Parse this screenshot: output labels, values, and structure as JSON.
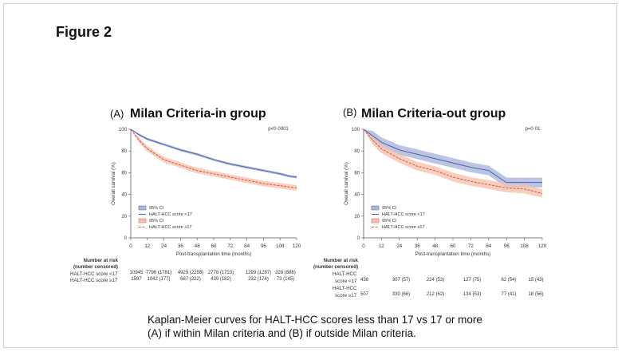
{
  "figure_title": "Figure 2",
  "caption": {
    "line1": "Kaplan-Meier curves for HALT-HCC scores less than 17 vs 17 or more",
    "line2": "(A) if within Milan criteria and (B) if outside Milan criteria."
  },
  "colors": {
    "blue_line": "#4a63a6",
    "blue_band": "#aab7dc",
    "red_line": "#d9534f",
    "red_band": "#f6c2ad"
  },
  "chart_data": [
    {
      "type": "line",
      "panel_tag": "(A)",
      "title": "Milan Criteria-in group",
      "xlabel": "Post-transplantation time (months)",
      "ylabel": "Overall survival (%)",
      "xlim": [
        0,
        120
      ],
      "ylim": [
        0,
        100
      ],
      "xticks": [
        "0",
        "12",
        "24",
        "36",
        "48",
        "60",
        "72",
        "84",
        "96",
        "108",
        "120"
      ],
      "yticks": [
        "0",
        "20",
        "40",
        "60",
        "80",
        "100"
      ],
      "p_value": "p<0·0001",
      "legend": [
        "95% CI",
        "HALT-HCC score <17",
        "95% CI",
        "HALT-HCC score ≥17"
      ],
      "legend_position": "bottom-left",
      "series": [
        {
          "name": "HALT-HCC score <17",
          "color": "blue",
          "x": [
            0,
            6,
            12,
            24,
            36,
            48,
            60,
            72,
            84,
            96,
            108,
            114,
            120
          ],
          "y": [
            100,
            95,
            91,
            86,
            81,
            77,
            72,
            68,
            65,
            62,
            59,
            57,
            56
          ],
          "ci_halfwidth": 1.2
        },
        {
          "name": "HALT-HCC score ≥17",
          "color": "red",
          "x": [
            0,
            6,
            12,
            24,
            36,
            48,
            60,
            72,
            84,
            96,
            108,
            114,
            120
          ],
          "y": [
            100,
            90,
            82,
            72,
            67,
            62,
            59,
            56,
            53,
            50,
            48,
            47,
            46
          ],
          "ci_halfwidth": 2.5
        }
      ],
      "risk_table": {
        "header": [
          "Number at risk",
          "(number censored)"
        ],
        "rows": [
          {
            "label": "HALT-HCC score <17",
            "values": [
              "10945",
              "7796 (1781)",
              "4929 (2258)",
              "2778 (1723)",
              "1299 (1287)",
              "328 (886)"
            ]
          },
          {
            "label": "HALT-HCC score ≥17",
            "values": [
              "1597",
              "1042 (177)",
              "687 (222)",
              "439 (182)",
              "232 (174)",
              "73 (145)"
            ]
          }
        ]
      }
    },
    {
      "type": "line",
      "panel_tag": "(B)",
      "title": "Milan Criteria-out group",
      "xlabel": "Post-transplantation time (months)",
      "ylabel": "Overall survival (%)",
      "xlim": [
        0,
        120
      ],
      "ylim": [
        0,
        100
      ],
      "xticks": [
        "0",
        "12",
        "24",
        "36",
        "48",
        "60",
        "72",
        "84",
        "96",
        "108",
        "120"
      ],
      "yticks": [
        "0",
        "20",
        "40",
        "60",
        "80",
        "100"
      ],
      "p_value": "p=0·01",
      "legend": [
        "95% CI",
        "HALT-HCC score <17",
        "95% CI",
        "HALT-HCC score ≥17"
      ],
      "legend_position": "bottom-left",
      "series": [
        {
          "name": "HALT-HCC score <17",
          "color": "blue",
          "x": [
            0,
            6,
            12,
            24,
            36,
            48,
            60,
            72,
            84,
            96,
            108,
            120
          ],
          "y": [
            100,
            94,
            88,
            81,
            77,
            73,
            69,
            65,
            62,
            51,
            51,
            51
          ],
          "ci_halfwidth": 4.5
        },
        {
          "name": "HALT-HCC score ≥17",
          "color": "red",
          "x": [
            0,
            6,
            12,
            24,
            36,
            48,
            60,
            72,
            84,
            96,
            108,
            120
          ],
          "y": [
            100,
            90,
            82,
            73,
            66,
            62,
            56,
            52,
            49,
            46,
            45,
            41
          ],
          "ci_halfwidth": 4
        }
      ],
      "risk_table": {
        "header": [
          "Number at risk",
          "(number censored)"
        ],
        "rows": [
          {
            "label_lines": [
              "HALT-HCC",
              "score <17"
            ],
            "values": [
              "438",
              "307 (57)",
              "224 (53)",
              "127 (75)",
              "62 (54)",
              "15 (43)"
            ]
          },
          {
            "label_lines": [
              "HALT-HCC",
              "score ≥17"
            ],
            "values": [
              "507",
              "330 (66)",
              "212 (62)",
              "134 (53)",
              "77 (41)",
              "18 (56)"
            ]
          }
        ]
      }
    }
  ]
}
